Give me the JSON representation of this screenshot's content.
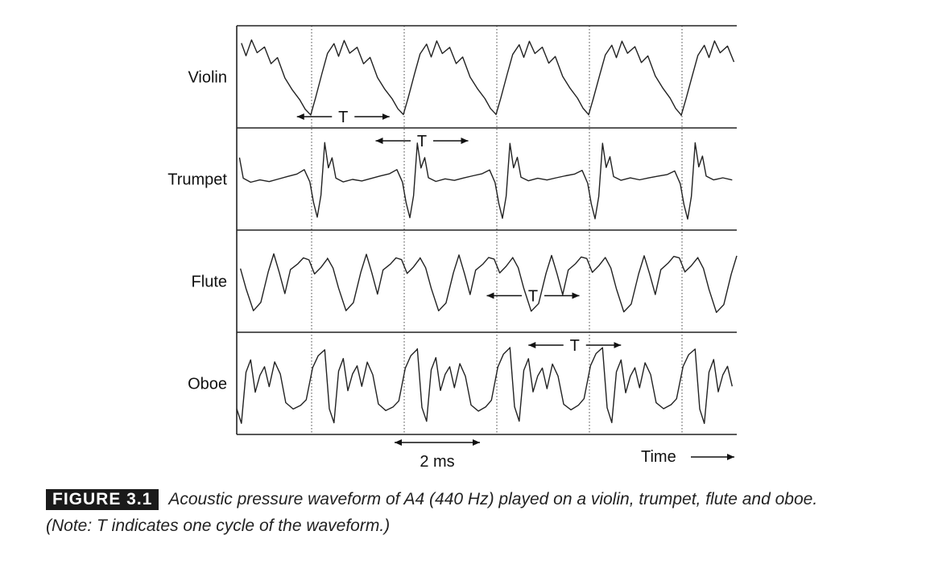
{
  "chart_data": {
    "type": "line",
    "title": "",
    "panels": [
      {
        "name": "Violin",
        "cycle_shape": [
          [
            0.0,
            -0.95
          ],
          [
            0.05,
            -0.55
          ],
          [
            0.12,
            0.05
          ],
          [
            0.18,
            0.55
          ],
          [
            0.25,
            0.8
          ],
          [
            0.3,
            0.5
          ],
          [
            0.36,
            0.9
          ],
          [
            0.42,
            0.6
          ],
          [
            0.5,
            0.75
          ],
          [
            0.57,
            0.35
          ],
          [
            0.64,
            0.5
          ],
          [
            0.72,
            0.0
          ],
          [
            0.8,
            -0.3
          ],
          [
            0.88,
            -0.55
          ],
          [
            0.94,
            -0.8
          ],
          [
            1.0,
            -0.95
          ]
        ],
        "period_arrow": {
          "start_cycle": 0.65,
          "cycles": 1
        }
      },
      {
        "name": "Trumpet",
        "cycle_shape": [
          [
            0.0,
            0.9
          ],
          [
            0.04,
            0.3
          ],
          [
            0.08,
            0.55
          ],
          [
            0.12,
            0.05
          ],
          [
            0.2,
            -0.05
          ],
          [
            0.3,
            0.0
          ],
          [
            0.4,
            -0.05
          ],
          [
            0.5,
            0.0
          ],
          [
            0.6,
            0.05
          ],
          [
            0.7,
            0.1
          ],
          [
            0.78,
            0.2
          ],
          [
            0.84,
            -0.1
          ],
          [
            0.88,
            -0.6
          ],
          [
            0.92,
            -0.95
          ],
          [
            0.96,
            -0.4
          ],
          [
            1.0,
            0.9
          ]
        ],
        "period_arrow": {
          "start_cycle": 1.5,
          "cycles": 1
        }
      },
      {
        "name": "Flute",
        "cycle_shape": [
          [
            0.0,
            0.55
          ],
          [
            0.06,
            0.3
          ],
          [
            0.12,
            -0.2
          ],
          [
            0.2,
            -0.75
          ],
          [
            0.28,
            -0.55
          ],
          [
            0.36,
            0.2
          ],
          [
            0.42,
            0.65
          ],
          [
            0.48,
            0.2
          ],
          [
            0.54,
            -0.3
          ],
          [
            0.6,
            0.3
          ],
          [
            0.68,
            0.45
          ],
          [
            0.74,
            0.6
          ],
          [
            0.8,
            0.55
          ],
          [
            0.86,
            0.2
          ],
          [
            0.93,
            0.35
          ],
          [
            1.0,
            0.55
          ]
        ],
        "period_arrow": {
          "start_cycle": 2.7,
          "cycles": 1
        }
      },
      {
        "name": "Oboe",
        "cycle_shape": [
          [
            0.0,
            0.85
          ],
          [
            0.05,
            -0.6
          ],
          [
            0.1,
            -0.95
          ],
          [
            0.15,
            0.3
          ],
          [
            0.2,
            0.6
          ],
          [
            0.25,
            -0.2
          ],
          [
            0.3,
            0.2
          ],
          [
            0.35,
            0.4
          ],
          [
            0.4,
            -0.1
          ],
          [
            0.46,
            0.5
          ],
          [
            0.52,
            0.2
          ],
          [
            0.58,
            -0.5
          ],
          [
            0.66,
            -0.65
          ],
          [
            0.74,
            -0.55
          ],
          [
            0.8,
            -0.4
          ],
          [
            0.87,
            0.4
          ],
          [
            0.93,
            0.7
          ],
          [
            1.0,
            0.85
          ]
        ],
        "period_arrow": {
          "start_cycle": 3.15,
          "cycles": 1
        }
      }
    ],
    "cycles_shown": 5.4,
    "grid": "vertical dotted",
    "scale_bar": {
      "label": "2 ms"
    },
    "xlabel": "Time",
    "period_label": "T"
  },
  "caption": {
    "badge": "FIGURE 3.1",
    "text": "Acoustic pressure waveform of A4 (440 Hz) played on a violin, trumpet, flute and oboe. (Note: T indicates one cycle of the waveform.)"
  }
}
